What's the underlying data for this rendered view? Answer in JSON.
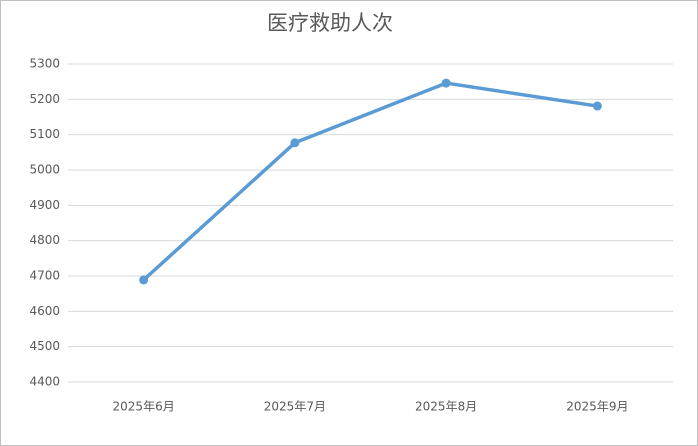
{
  "chart_data": {
    "type": "line",
    "title": "医疗救助人次",
    "categories": [
      "2025年6月",
      "2025年7月",
      "2025年8月",
      "2025年9月"
    ],
    "series": [
      {
        "name": "医疗救助人次",
        "color": "#5b9bd5",
        "values": [
          4689,
          5077,
          5246,
          5181
        ]
      }
    ],
    "ylim": [
      4400,
      5300
    ],
    "yticks": [
      4400,
      4500,
      4600,
      4700,
      4800,
      4900,
      5000,
      5100,
      5200,
      5300
    ],
    "grid": true
  }
}
